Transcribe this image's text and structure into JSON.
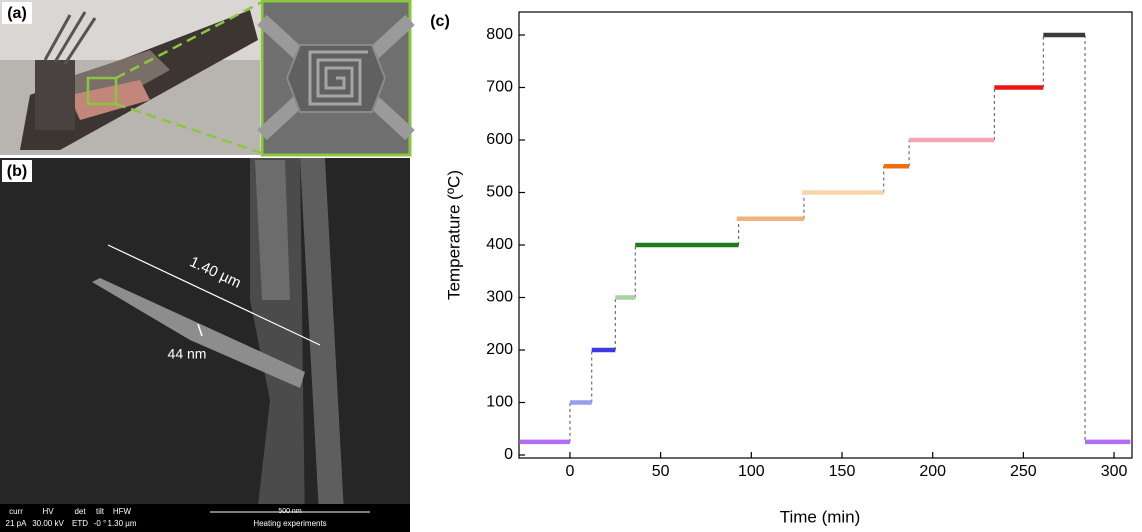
{
  "panels": {
    "a": {
      "label": "(a)"
    },
    "b": {
      "label": "(b)",
      "length_label": "1.40 µm",
      "width_label": "44 nm",
      "info_headers": [
        "curr",
        "HV",
        "det",
        "tilt",
        "HFW"
      ],
      "info_values": [
        "21 pA",
        "30.00 kV",
        "ETD",
        "-0 °",
        "1.30 µm"
      ],
      "scale_bar": "500 nm",
      "caption": "Heating experiments"
    }
  },
  "chart_data": {
    "type": "line",
    "label": "(c)",
    "x_label": "Time (min)",
    "y_label": "Temperature (ºC)",
    "xlim": [
      -28.1,
      309.9
    ],
    "xticks": [
      0,
      50,
      100,
      150,
      200,
      250,
      300
    ],
    "ylim": [
      -5.7,
      843.8
    ],
    "yticks": [
      0,
      100,
      200,
      300,
      400,
      500,
      600,
      700,
      800
    ],
    "connectors": "dashed",
    "series": [
      {
        "color": "#b36ef0",
        "x": [
          -28,
          0
        ],
        "values": [
          25,
          25
        ]
      },
      {
        "color": "#9a9cf0",
        "x": [
          0,
          12
        ],
        "values": [
          100,
          100
        ]
      },
      {
        "color": "#3a3ae0",
        "x": [
          12,
          25
        ],
        "values": [
          200,
          200
        ]
      },
      {
        "color": "#a9d3a3",
        "x": [
          25,
          36
        ],
        "values": [
          300,
          300
        ]
      },
      {
        "color": "#1f7a1f",
        "x": [
          36,
          93
        ],
        "values": [
          400,
          400
        ]
      },
      {
        "color": "#f3b27c",
        "x": [
          92,
          129
        ],
        "values": [
          450,
          450
        ]
      },
      {
        "color": "#f7d6ae",
        "x": [
          128,
          173
        ],
        "values": [
          500,
          500
        ]
      },
      {
        "color": "#ef6f0e",
        "x": [
          173,
          187
        ],
        "values": [
          550,
          550
        ]
      },
      {
        "color": "#f4a7ae",
        "x": [
          187,
          234
        ],
        "values": [
          600,
          600
        ]
      },
      {
        "color": "#ee1414",
        "x": [
          234,
          261
        ],
        "values": [
          700,
          700
        ]
      },
      {
        "color": "#3a3a3a",
        "x": [
          261,
          284
        ],
        "values": [
          800,
          800
        ]
      },
      {
        "color": "#b36ef0",
        "x": [
          284,
          309
        ],
        "values": [
          25,
          25
        ]
      }
    ]
  }
}
